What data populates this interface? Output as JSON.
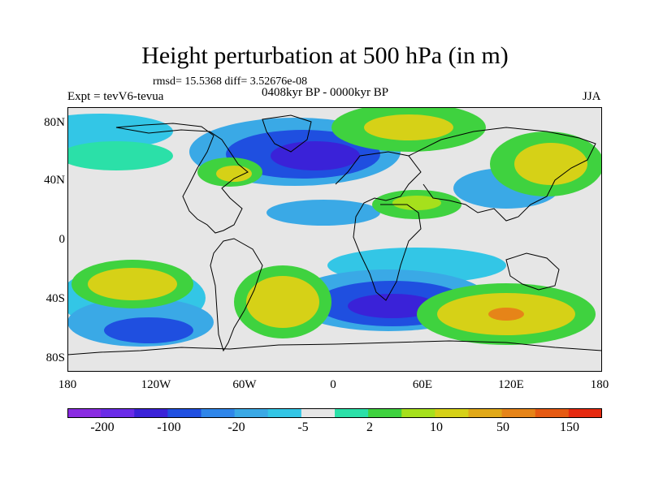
{
  "title": "Height perturbation at 500 hPa (in m)",
  "stats": "rmsd= 15.5368 diff= 3.52676e-08",
  "experiment": "Expt = tevV6-tevua",
  "period": "0408kyr BP - 0000kyr BP",
  "season": "JJA",
  "axes": {
    "y_ticks": [
      "80N",
      "40N",
      "0",
      "40S",
      "80S"
    ],
    "x_ticks": [
      "180",
      "120W",
      "60W",
      "0",
      "60E",
      "120E",
      "180"
    ]
  },
  "colorbar": {
    "labels": [
      "-200",
      "-100",
      "-20",
      "-5",
      "2",
      "10",
      "50",
      "150"
    ],
    "colors": [
      "#8a2be2",
      "#6a2be8",
      "#3a22d8",
      "#1f4fe0",
      "#2f86ea",
      "#3aa9e6",
      "#33c6e6",
      "#e6e6e6",
      "#2be0a8",
      "#3fd23f",
      "#a6e01c",
      "#d6d117",
      "#e0a818",
      "#e68418",
      "#e65a12",
      "#e62a10"
    ]
  },
  "map_colors": {
    "neutral": "#e6e6e6",
    "cyan": "#33c6e6",
    "lightblue": "#3aa9e6",
    "blue": "#1f4fe0",
    "deepblue": "#3a22d8",
    "teal": "#2be0a8",
    "green": "#3fd23f",
    "lime": "#a6e01c",
    "yellow": "#d6d117",
    "orange": "#e0a818",
    "darkorange": "#e68418",
    "coast": "#000000"
  }
}
